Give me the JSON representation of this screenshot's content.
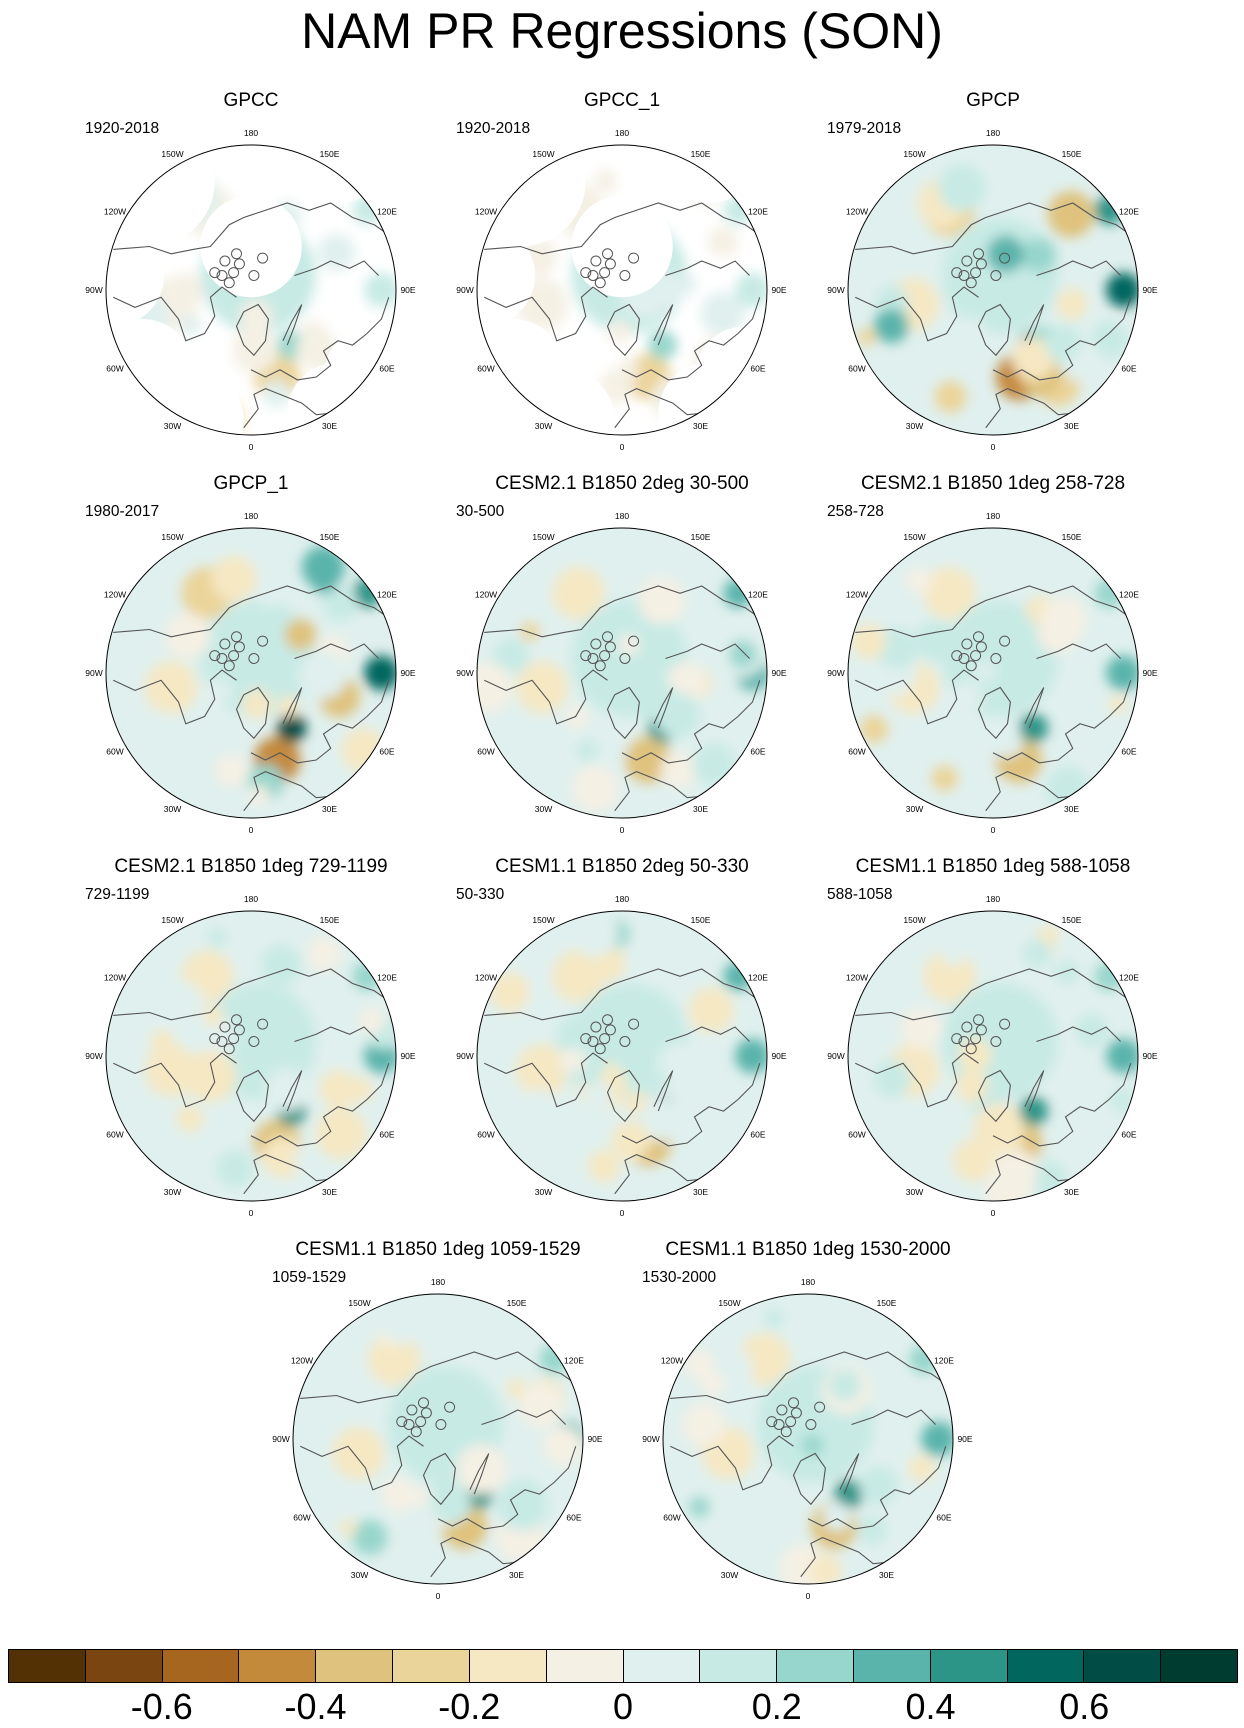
{
  "title": "NAM PR Regressions (SON)",
  "lon_labels": [
    "180",
    "150E",
    "120E",
    "90E",
    "60E",
    "30E",
    "0",
    "30W",
    "60W",
    "90W",
    "120W",
    "150W"
  ],
  "panels": [
    {
      "title": "GPCC",
      "period": "1920-2018",
      "missing_land": true,
      "intensity": 0.35,
      "seed": 11
    },
    {
      "title": "GPCC_1",
      "period": "1920-2018",
      "missing_land": true,
      "intensity": 0.35,
      "seed": 12
    },
    {
      "title": "GPCP",
      "period": "1979-2018",
      "missing_land": false,
      "intensity": 1.0,
      "seed": 23
    },
    {
      "title": "GPCP_1",
      "period": "1980-2017",
      "missing_land": false,
      "intensity": 1.0,
      "seed": 24
    },
    {
      "title": "CESM2.1 B1850 2deg 30-500",
      "period": "30-500",
      "missing_land": false,
      "intensity": 0.7,
      "seed": 31
    },
    {
      "title": "CESM2.1 B1850 1deg 258-728",
      "period": "258-728",
      "missing_land": false,
      "intensity": 0.6,
      "seed": 32
    },
    {
      "title": "CESM2.1 B1850 1deg 729-1199",
      "period": "729-1199",
      "missing_land": false,
      "intensity": 0.6,
      "seed": 33
    },
    {
      "title": "CESM1.1 B1850 2deg 50-330",
      "period": "50-330",
      "missing_land": false,
      "intensity": 0.75,
      "seed": 41
    },
    {
      "title": "CESM1.1 B1850 1deg 588-1058",
      "period": "588-1058",
      "missing_land": false,
      "intensity": 0.6,
      "seed": 42
    },
    {
      "title": "CESM1.1 B1850 1deg 1059-1529",
      "period": "1059-1529",
      "missing_land": false,
      "intensity": 0.6,
      "seed": 43
    },
    {
      "title": "CESM1.1 B1850 1deg 1530-2000",
      "period": "1530-2000",
      "missing_land": false,
      "intensity": 0.6,
      "seed": 44
    }
  ],
  "colorbar": {
    "colors": [
      "#543005",
      "#7a4510",
      "#a6661f",
      "#c48a3c",
      "#dfc27d",
      "#ebd49a",
      "#f6e8c3",
      "#f5f0e4",
      "#e0f0ee",
      "#c7eae5",
      "#97d6cc",
      "#5ab4ac",
      "#2d9488",
      "#01665e",
      "#014d45",
      "#003c30"
    ],
    "labels": [
      "-0.6",
      "-0.4",
      "-0.2",
      "0",
      "0.2",
      "0.4",
      "0.6"
    ],
    "min": -0.8,
    "max": 0.8
  }
}
